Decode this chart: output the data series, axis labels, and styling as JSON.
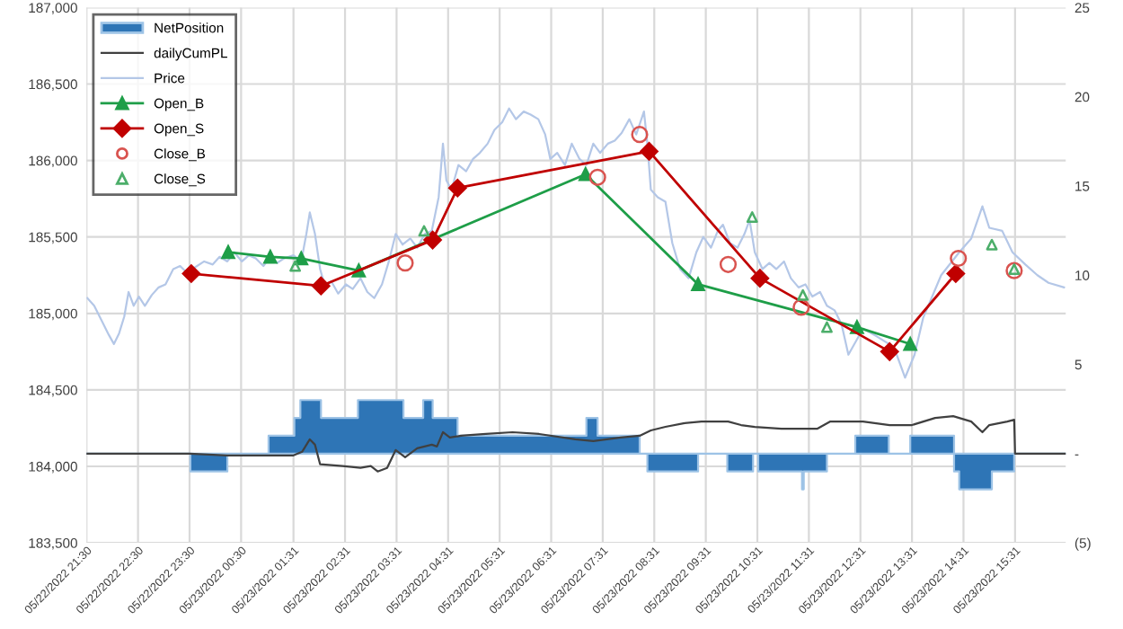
{
  "chart_data": {
    "type": "line",
    "xlim": [
      "2022-05-22T21:30",
      "2022-05-23T16:30"
    ],
    "xticks": [
      {
        "value": "2022-05-22T21:30",
        "label": "05/22/2022 21:30"
      },
      {
        "value": "2022-05-22T22:30",
        "label": "05/22/2022 22:30"
      },
      {
        "value": "2022-05-22T23:30",
        "label": "05/22/2022 23:30"
      },
      {
        "value": "2022-05-23T00:30",
        "label": "05/23/2022 00:30"
      },
      {
        "value": "2022-05-23T01:31",
        "label": "05/23/2022 01:31"
      },
      {
        "value": "2022-05-23T02:31",
        "label": "05/23/2022 02:31"
      },
      {
        "value": "2022-05-23T03:31",
        "label": "05/23/2022 03:31"
      },
      {
        "value": "2022-05-23T04:31",
        "label": "05/23/2022 04:31"
      },
      {
        "value": "2022-05-23T05:31",
        "label": "05/23/2022 05:31"
      },
      {
        "value": "2022-05-23T06:31",
        "label": "05/23/2022 06:31"
      },
      {
        "value": "2022-05-23T07:31",
        "label": "05/23/2022 07:31"
      },
      {
        "value": "2022-05-23T08:31",
        "label": "05/23/2022 08:31"
      },
      {
        "value": "2022-05-23T09:31",
        "label": "05/23/2022 09:31"
      },
      {
        "value": "2022-05-23T10:31",
        "label": "05/23/2022 10:31"
      },
      {
        "value": "2022-05-23T11:31",
        "label": "05/23/2022 11:31"
      },
      {
        "value": "2022-05-23T12:31",
        "label": "05/23/2022 12:31"
      },
      {
        "value": "2022-05-23T13:31",
        "label": "05/23/2022 13:31"
      },
      {
        "value": "2022-05-23T14:31",
        "label": "05/23/2022 14:31"
      },
      {
        "value": "2022-05-23T15:31",
        "label": "05/23/2022 15:31"
      }
    ],
    "ylim": [
      183500,
      187000
    ],
    "yticks": [
      {
        "value": 183500,
        "label": "183,500"
      },
      {
        "value": 184000,
        "label": "184,000"
      },
      {
        "value": 184500,
        "label": "184,500"
      },
      {
        "value": 185000,
        "label": "185,000"
      },
      {
        "value": 185500,
        "label": "185,500"
      },
      {
        "value": 186000,
        "label": "186,000"
      },
      {
        "value": 186500,
        "label": "186,500"
      },
      {
        "value": 187000,
        "label": "187,000"
      }
    ],
    "y2lim": [
      -5,
      25
    ],
    "y2ticks": [
      {
        "value": -5,
        "label": "(5)"
      },
      {
        "value": 0,
        "label": "-"
      },
      5,
      10,
      15,
      20,
      25
    ],
    "grid": true,
    "legend": "top left",
    "series": [
      {
        "name": "NetPosition",
        "type": "area",
        "axis": "y2",
        "color": "#2e75b6",
        "x": [
          "2022-05-22T21:30",
          "2022-05-22T23:31",
          "2022-05-22T23:31",
          "2022-05-23T00:14",
          "2022-05-23T00:14",
          "2022-05-23T01:02",
          "2022-05-23T01:02",
          "2022-05-23T01:32",
          "2022-05-23T01:32",
          "2022-05-23T01:39",
          "2022-05-23T01:39",
          "2022-05-23T02:03",
          "2022-05-23T02:03",
          "2022-05-23T02:46",
          "2022-05-23T02:46",
          "2022-05-23T03:39",
          "2022-05-23T03:39",
          "2022-05-23T04:02",
          "2022-05-23T04:02",
          "2022-05-23T04:13",
          "2022-05-23T04:13",
          "2022-05-23T04:42",
          "2022-05-23T04:42",
          "2022-05-23T07:12",
          "2022-05-23T07:12",
          "2022-05-23T07:25",
          "2022-05-23T07:25",
          "2022-05-23T08:14",
          "2022-05-23T08:14",
          "2022-05-23T08:23",
          "2022-05-23T08:23",
          "2022-05-23T09:22",
          "2022-05-23T09:22",
          "2022-05-23T09:56",
          "2022-05-23T09:56",
          "2022-05-23T10:26",
          "2022-05-23T10:26",
          "2022-05-23T10:32",
          "2022-05-23T10:32",
          "2022-05-23T11:23",
          "2022-05-23T11:23",
          "2022-05-23T11:25",
          "2022-05-23T11:25",
          "2022-05-23T11:52",
          "2022-05-23T11:52",
          "2022-05-23T12:25",
          "2022-05-23T12:25",
          "2022-05-23T13:04",
          "2022-05-23T13:04",
          "2022-05-23T13:29",
          "2022-05-23T13:29",
          "2022-05-23T14:20",
          "2022-05-23T14:20",
          "2022-05-23T14:26",
          "2022-05-23T14:26",
          "2022-05-23T15:04",
          "2022-05-23T15:04",
          "2022-05-23T15:30",
          "2022-05-23T15:30",
          "2022-05-23T16:30"
        ],
        "values": [
          0,
          0,
          -1,
          -1,
          0,
          0,
          1,
          1,
          2,
          2,
          3,
          3,
          2,
          2,
          3,
          3,
          2,
          2,
          3,
          3,
          2,
          2,
          1,
          1,
          2,
          2,
          1,
          1,
          0,
          0,
          -1,
          -1,
          0,
          0,
          -1,
          -1,
          0,
          0,
          -1,
          -1,
          -2,
          -2,
          -1,
          -1,
          0,
          0,
          1,
          1,
          0,
          0,
          1,
          1,
          -1,
          -1,
          -2,
          -2,
          -1,
          -1,
          0,
          0
        ]
      },
      {
        "name": "dailyCumPL",
        "axis": "y2",
        "color": "#404040",
        "x": [
          "2022-05-22T21:30",
          "2022-05-22T23:30",
          "2022-05-23T00:14",
          "2022-05-23T01:31",
          "2022-05-23T01:41",
          "2022-05-23T01:50",
          "2022-05-23T01:56",
          "2022-05-23T02:02",
          "2022-05-23T02:28",
          "2022-05-23T02:49",
          "2022-05-23T03:01",
          "2022-05-23T03:09",
          "2022-05-23T03:20",
          "2022-05-23T03:30",
          "2022-05-23T03:41",
          "2022-05-23T03:55",
          "2022-05-23T04:12",
          "2022-05-23T04:18",
          "2022-05-23T04:25",
          "2022-05-23T04:33",
          "2022-05-23T04:46",
          "2022-05-23T05:15",
          "2022-05-23T05:46",
          "2022-05-23T06:17",
          "2022-05-23T06:59",
          "2022-05-23T07:20",
          "2022-05-23T07:52",
          "2022-05-23T08:14",
          "2022-05-23T08:27",
          "2022-05-23T08:44",
          "2022-05-23T09:05",
          "2022-05-23T09:26",
          "2022-05-23T09:57",
          "2022-05-23T10:12",
          "2022-05-23T10:28",
          "2022-05-23T10:59",
          "2022-05-23T11:41",
          "2022-05-23T11:56",
          "2022-05-23T12:34",
          "2022-05-23T13:05",
          "2022-05-23T13:31",
          "2022-05-23T13:58",
          "2022-05-23T14:19",
          "2022-05-23T14:40",
          "2022-05-23T14:53",
          "2022-05-23T15:01",
          "2022-05-23T15:22",
          "2022-05-23T15:30",
          "2022-05-23T15:31",
          "2022-05-23T16:30"
        ],
        "values": [
          0,
          0,
          -0.1,
          -0.1,
          0.1,
          0.8,
          0.5,
          -0.6,
          -0.7,
          -0.8,
          -0.7,
          -1.0,
          -0.8,
          0.2,
          -0.2,
          0.3,
          0.5,
          0.4,
          1.2,
          0.9,
          1.0,
          1.1,
          1.2,
          1.1,
          0.8,
          0.7,
          0.9,
          1.0,
          1.3,
          1.5,
          1.7,
          1.8,
          1.8,
          1.6,
          1.5,
          1.4,
          1.4,
          1.8,
          1.8,
          1.6,
          1.6,
          2.0,
          2.1,
          1.8,
          1.2,
          1.6,
          1.8,
          1.9,
          0,
          0
        ]
      },
      {
        "name": "Price",
        "color": "#b4c7e7",
        "x": [
          "2022-05-22T21:31",
          "2022-05-22T21:39",
          "2022-05-22T21:47",
          "2022-05-22T21:56",
          "2022-05-22T22:02",
          "2022-05-22T22:08",
          "2022-05-22T22:14",
          "2022-05-22T22:19",
          "2022-05-22T22:25",
          "2022-05-22T22:31",
          "2022-05-22T22:38",
          "2022-05-22T22:46",
          "2022-05-22T22:54",
          "2022-05-22T23:02",
          "2022-05-22T23:11",
          "2022-05-22T23:19",
          "2022-05-22T23:28",
          "2022-05-22T23:36",
          "2022-05-22T23:47",
          "2022-05-22T23:57",
          "2022-05-23T00:05",
          "2022-05-23T00:14",
          "2022-05-23T00:22",
          "2022-05-23T00:31",
          "2022-05-23T00:39",
          "2022-05-23T00:47",
          "2022-05-23T00:56",
          "2022-05-23T01:04",
          "2022-05-23T01:12",
          "2022-05-23T01:20",
          "2022-05-23T01:31",
          "2022-05-23T01:40",
          "2022-05-23T01:46",
          "2022-05-23T01:50",
          "2022-05-23T01:56",
          "2022-05-23T02:02",
          "2022-05-23T02:08",
          "2022-05-23T02:15",
          "2022-05-23T02:23",
          "2022-05-23T02:32",
          "2022-05-23T02:40",
          "2022-05-23T02:49",
          "2022-05-23T02:57",
          "2022-05-23T03:05",
          "2022-05-23T03:14",
          "2022-05-23T03:22",
          "2022-05-23T03:30",
          "2022-05-23T03:38",
          "2022-05-23T03:47",
          "2022-05-23T03:55",
          "2022-05-23T04:04",
          "2022-05-23T04:12",
          "2022-05-23T04:20",
          "2022-05-23T04:25",
          "2022-05-23T04:29",
          "2022-05-23T04:35",
          "2022-05-23T04:43",
          "2022-05-23T04:52",
          "2022-05-23T05:00",
          "2022-05-23T05:08",
          "2022-05-23T05:17",
          "2022-05-23T05:25",
          "2022-05-23T05:34",
          "2022-05-23T05:42",
          "2022-05-23T05:50",
          "2022-05-23T05:59",
          "2022-05-23T06:07",
          "2022-05-23T06:16",
          "2022-05-23T06:24",
          "2022-05-23T06:30",
          "2022-05-23T06:38",
          "2022-05-23T06:47",
          "2022-05-23T06:55",
          "2022-05-23T07:04",
          "2022-05-23T07:12",
          "2022-05-23T07:20",
          "2022-05-23T07:28",
          "2022-05-23T07:37",
          "2022-05-23T07:45",
          "2022-05-23T07:53",
          "2022-05-23T08:02",
          "2022-05-23T08:10",
          "2022-05-23T08:19",
          "2022-05-23T08:23",
          "2022-05-23T08:27",
          "2022-05-23T08:35",
          "2022-05-23T08:44",
          "2022-05-23T08:52",
          "2022-05-23T09:01",
          "2022-05-23T09:11",
          "2022-05-23T09:20",
          "2022-05-23T09:28",
          "2022-05-23T09:37",
          "2022-05-23T09:45",
          "2022-05-23T09:51",
          "2022-05-23T09:59",
          "2022-05-23T10:08",
          "2022-05-23T10:16",
          "2022-05-23T10:22",
          "2022-05-23T10:28",
          "2022-05-23T10:37",
          "2022-05-23T10:45",
          "2022-05-23T10:53",
          "2022-05-23T11:02",
          "2022-05-23T11:10",
          "2022-05-23T11:19",
          "2022-05-23T11:27",
          "2022-05-23T11:35",
          "2022-05-23T11:44",
          "2022-05-23T11:52",
          "2022-05-23T12:01",
          "2022-05-23T12:09",
          "2022-05-23T12:17",
          "2022-05-23T12:34",
          "2022-05-23T12:50",
          "2022-05-23T13:10",
          "2022-05-23T13:23",
          "2022-05-23T13:34",
          "2022-05-23T13:44",
          "2022-05-23T14:05",
          "2022-05-23T14:26",
          "2022-05-23T14:40",
          "2022-05-23T14:53",
          "2022-05-23T15:01",
          "2022-05-23T15:16",
          "2022-05-23T15:28",
          "2022-05-23T15:43",
          "2022-05-23T15:57",
          "2022-05-23T16:10",
          "2022-05-23T16:28"
        ],
        "values": [
          185100,
          185050,
          184960,
          184860,
          184800,
          184870,
          184980,
          185140,
          185050,
          185110,
          185050,
          185120,
          185170,
          185190,
          185290,
          185310,
          185260,
          185300,
          185340,
          185320,
          185370,
          185340,
          185400,
          185340,
          185380,
          185360,
          185310,
          185370,
          185330,
          185360,
          185380,
          185340,
          185520,
          185660,
          185520,
          185290,
          185170,
          185210,
          185130,
          185190,
          185160,
          185230,
          185140,
          185100,
          185190,
          185340,
          185520,
          185450,
          185490,
          185430,
          185520,
          185540,
          185760,
          186110,
          185870,
          185810,
          185970,
          185930,
          186010,
          186050,
          186110,
          186200,
          186250,
          186340,
          186270,
          186320,
          186300,
          186270,
          186170,
          186010,
          186050,
          185970,
          186110,
          186010,
          185970,
          186110,
          186050,
          186110,
          186130,
          186180,
          186270,
          186170,
          186320,
          186110,
          185810,
          185760,
          185730,
          185460,
          185290,
          185230,
          185400,
          185500,
          185430,
          185540,
          185580,
          185460,
          185430,
          185520,
          185610,
          185400,
          185290,
          185330,
          185290,
          185340,
          185230,
          185170,
          185190,
          185110,
          185140,
          185050,
          185020,
          184930,
          184730,
          184900,
          184850,
          184780,
          184580,
          184730,
          184970,
          185250,
          185400,
          185490,
          185700,
          185560,
          185540,
          185400,
          185320,
          185250,
          185200,
          185170
        ]
      },
      {
        "name": "Open_B",
        "marker": "triangle",
        "color": "#1e9e48",
        "x": [
          "2022-05-23T00:15",
          "2022-05-23T01:04",
          "2022-05-23T01:40",
          "2022-05-23T02:47",
          "2022-05-23T07:11",
          "2022-05-23T09:22",
          "2022-05-23T12:27",
          "2022-05-23T13:29"
        ],
        "values": [
          185400,
          185370,
          185360,
          185280,
          185910,
          185190,
          184910,
          184800
        ]
      },
      {
        "name": "Open_S",
        "marker": "diamond",
        "color": "#c00000",
        "x": [
          "2022-05-22T23:32",
          "2022-05-23T02:03",
          "2022-05-23T04:13",
          "2022-05-23T04:42",
          "2022-05-23T08:25",
          "2022-05-23T10:34",
          "2022-05-23T13:05",
          "2022-05-23T14:22"
        ],
        "values": [
          185260,
          185180,
          185480,
          185820,
          186060,
          185230,
          184750,
          185260
        ]
      },
      {
        "name": "Close_B",
        "type": "scatter",
        "marker": "circle",
        "color": "#d9534f",
        "x": [
          "2022-05-23T03:41",
          "2022-05-23T07:25",
          "2022-05-23T08:14",
          "2022-05-23T09:57",
          "2022-05-23T11:22",
          "2022-05-23T14:25",
          "2022-05-23T15:30"
        ],
        "values": [
          185330,
          185890,
          186170,
          185320,
          185040,
          185360,
          185280
        ]
      },
      {
        "name": "Close_S",
        "type": "scatter",
        "marker": "triangle",
        "color": "#4cae6a",
        "x": [
          "2022-05-23T01:33",
          "2022-05-23T04:03",
          "2022-05-23T10:25",
          "2022-05-23T11:24",
          "2022-05-23T11:52",
          "2022-05-23T15:04",
          "2022-05-23T15:30"
        ],
        "values": [
          185310,
          185540,
          185630,
          185120,
          184910,
          185450,
          185290
        ]
      }
    ]
  }
}
